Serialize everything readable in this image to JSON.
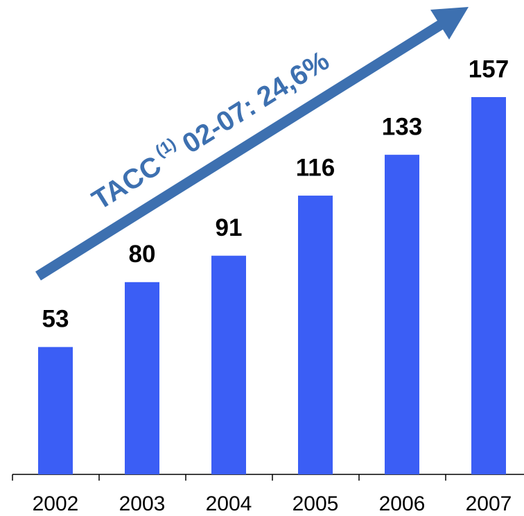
{
  "chart_data": {
    "type": "bar",
    "annotation": {
      "text": "TACC",
      "superscript": "(1)",
      "rest": "02-07: 24,6%"
    },
    "categories": [
      "2002",
      "2003",
      "2004",
      "2005",
      "2006",
      "2007"
    ],
    "values": [
      53,
      80,
      91,
      116,
      133,
      157
    ],
    "color": "#3b5ef5",
    "annotation_color": "#3d70b0"
  }
}
